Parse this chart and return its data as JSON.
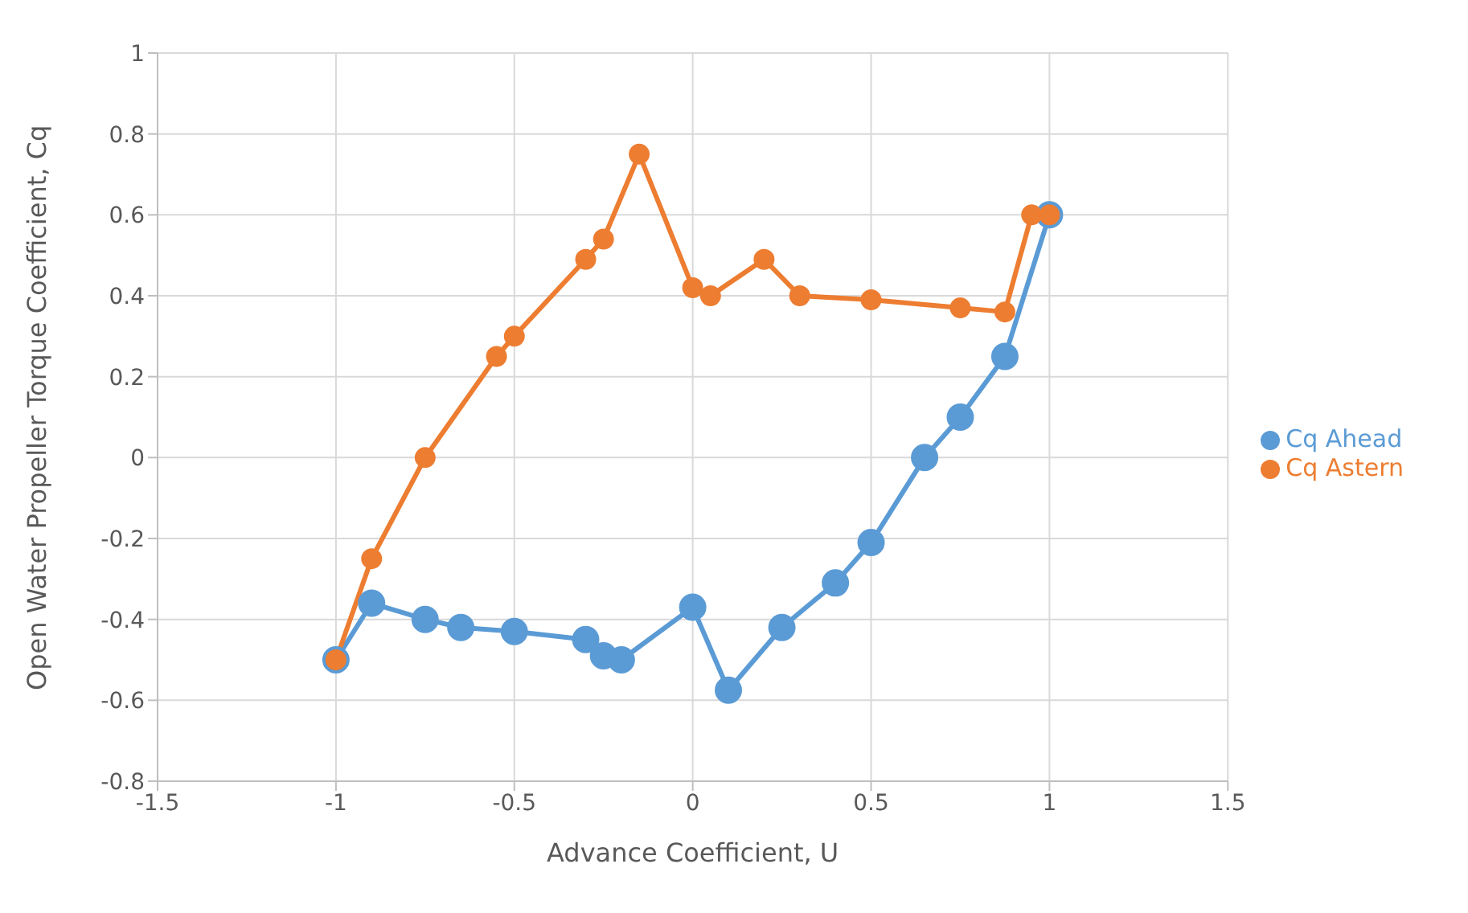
{
  "chart_data": {
    "type": "line",
    "xlabel": "Advance Coefficient, U",
    "ylabel": "Open Water Propeller Torque Coefficient, Cq",
    "xlim": [
      -1.5,
      1.5
    ],
    "xticks": [
      -1.5,
      -1,
      -0.5,
      0,
      0.5,
      1,
      1.5
    ],
    "ylim": [
      -0.8,
      1
    ],
    "yticks": [
      -0.8,
      -0.6,
      -0.4,
      -0.2,
      0,
      0.2,
      0.4,
      0.6,
      0.8,
      1
    ],
    "grid": true,
    "legend": "right",
    "marker": "circle",
    "series": [
      {
        "name": "Cq Ahead",
        "color": "#5b9bd5",
        "x": [
          -1,
          -0.9,
          -0.75,
          -0.65,
          -0.5,
          -0.3,
          -0.25,
          -0.2,
          0,
          0.1,
          0.25,
          0.4,
          0.5,
          0.65,
          0.75,
          0.875,
          1
        ],
        "values": [
          -0.5,
          -0.36,
          -0.4,
          -0.42,
          -0.43,
          -0.45,
          -0.49,
          -0.5,
          -0.37,
          -0.575,
          -0.42,
          -0.31,
          -0.21,
          0,
          0.1,
          0.25,
          0.6
        ]
      },
      {
        "name": "Cq Astern",
        "color": "#ed7d31",
        "x": [
          -1,
          -0.9,
          -0.75,
          -0.55,
          -0.5,
          -0.3,
          -0.25,
          -0.15,
          0,
          0.05,
          0.2,
          0.3,
          0.5,
          0.75,
          0.875,
          0.95,
          1
        ],
        "values": [
          -0.5,
          -0.25,
          0,
          0.25,
          0.3,
          0.49,
          0.54,
          0.75,
          0.42,
          0.4,
          0.49,
          0.4,
          0.39,
          0.37,
          0.36,
          0.6,
          0.6
        ]
      }
    ]
  }
}
